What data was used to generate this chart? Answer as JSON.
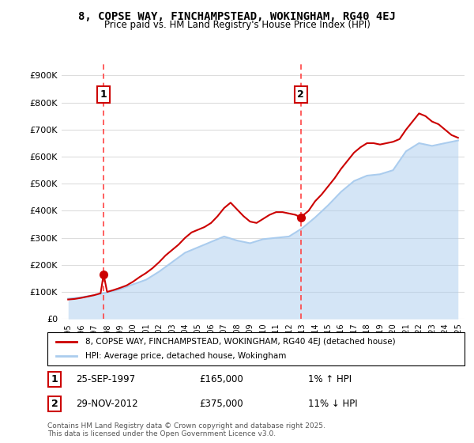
{
  "title": "8, COPSE WAY, FINCHAMPSTEAD, WOKINGHAM, RG40 4EJ",
  "subtitle": "Price paid vs. HM Land Registry's House Price Index (HPI)",
  "legend_line1": "8, COPSE WAY, FINCHAMPSTEAD, WOKINGHAM, RG40 4EJ (detached house)",
  "legend_line2": "HPI: Average price, detached house, Wokingham",
  "copyright": "Contains HM Land Registry data © Crown copyright and database right 2025.\nThis data is licensed under the Open Government Licence v3.0.",
  "annotation1_label": "1",
  "annotation1_date": "25-SEP-1997",
  "annotation1_price": "£165,000",
  "annotation1_hpi": "1% ↑ HPI",
  "annotation2_label": "2",
  "annotation2_date": "29-NOV-2012",
  "annotation2_price": "£375,000",
  "annotation2_hpi": "11% ↓ HPI",
  "price_paid_color": "#cc0000",
  "hpi_color": "#aaccee",
  "hpi_fill_color": "#aaccee",
  "vline_color": "#ff4444",
  "marker_color": "#cc0000",
  "ylim": [
    0,
    950000
  ],
  "yticks": [
    0,
    100000,
    200000,
    300000,
    400000,
    500000,
    600000,
    700000,
    800000,
    900000
  ],
  "hpi_years": [
    1995,
    1996,
    1997,
    1998,
    1999,
    2000,
    2001,
    2002,
    2003,
    2004,
    2005,
    2006,
    2007,
    2008,
    2009,
    2010,
    2011,
    2012,
    2013,
    2014,
    2015,
    2016,
    2017,
    2018,
    2019,
    2020,
    2021,
    2022,
    2023,
    2024,
    2025
  ],
  "hpi_values": [
    75000,
    80000,
    88000,
    98000,
    110000,
    128000,
    145000,
    175000,
    210000,
    245000,
    265000,
    285000,
    305000,
    290000,
    280000,
    295000,
    300000,
    305000,
    335000,
    375000,
    420000,
    470000,
    510000,
    530000,
    535000,
    550000,
    620000,
    650000,
    640000,
    650000,
    660000
  ],
  "price_paid_years": [
    1995.0,
    1995.5,
    1996.0,
    1996.5,
    1997.0,
    1997.5,
    1997.73,
    1998.0,
    1998.5,
    1999.0,
    1999.5,
    2000.0,
    2000.5,
    2001.0,
    2001.5,
    2002.0,
    2002.5,
    2003.0,
    2003.5,
    2004.0,
    2004.5,
    2005.0,
    2005.5,
    2006.0,
    2006.5,
    2007.0,
    2007.5,
    2008.0,
    2008.5,
    2009.0,
    2009.5,
    2010.0,
    2010.5,
    2011.0,
    2011.5,
    2012.0,
    2012.5,
    2012.91,
    2013.0,
    2013.5,
    2014.0,
    2014.5,
    2015.0,
    2015.5,
    2016.0,
    2016.5,
    2017.0,
    2017.5,
    2018.0,
    2018.5,
    2019.0,
    2019.5,
    2020.0,
    2020.5,
    2021.0,
    2021.5,
    2022.0,
    2022.5,
    2023.0,
    2023.5,
    2024.0,
    2024.5,
    2025.0
  ],
  "price_paid_values": [
    72000,
    74000,
    78000,
    83000,
    88000,
    95000,
    165000,
    100000,
    107000,
    115000,
    124000,
    138000,
    155000,
    170000,
    188000,
    210000,
    235000,
    255000,
    275000,
    300000,
    320000,
    330000,
    340000,
    355000,
    380000,
    410000,
    430000,
    405000,
    380000,
    360000,
    355000,
    370000,
    385000,
    395000,
    395000,
    390000,
    385000,
    375000,
    380000,
    400000,
    435000,
    460000,
    490000,
    520000,
    555000,
    585000,
    615000,
    635000,
    650000,
    650000,
    645000,
    650000,
    655000,
    665000,
    700000,
    730000,
    760000,
    750000,
    730000,
    720000,
    700000,
    680000,
    670000
  ],
  "sale1_year": 1997.73,
  "sale1_value": 165000,
  "sale2_year": 2012.91,
  "sale2_value": 375000,
  "vline1_year": 1997.73,
  "vline2_year": 2012.91,
  "xlabel_years": [
    1995,
    1996,
    1997,
    1998,
    1999,
    2000,
    2001,
    2002,
    2003,
    2004,
    2005,
    2006,
    2007,
    2008,
    2009,
    2010,
    2011,
    2012,
    2013,
    2014,
    2015,
    2016,
    2017,
    2018,
    2019,
    2020,
    2021,
    2022,
    2023,
    2024,
    2025
  ],
  "bg_color": "#ffffff",
  "grid_color": "#dddddd",
  "annotation_box_color": "#cc0000"
}
